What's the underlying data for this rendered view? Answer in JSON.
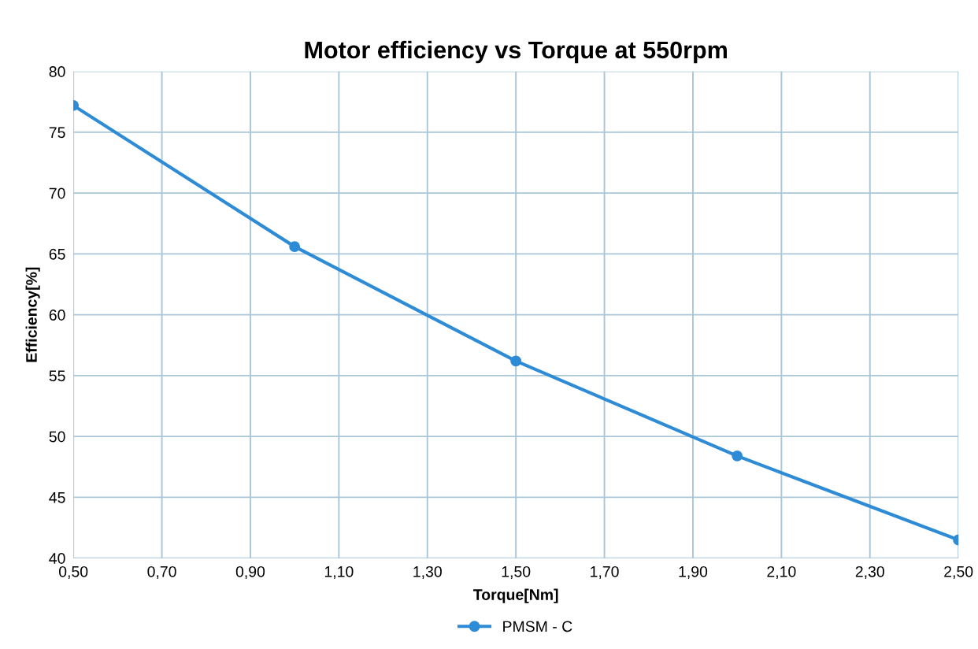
{
  "chart_data": {
    "type": "line",
    "title": "Motor efficiency vs Torque at 550rpm",
    "xlabel": "Torque[Nm]",
    "ylabel": "Efficiency[%]",
    "x": [
      0.5,
      1.0,
      1.5,
      2.0,
      2.5
    ],
    "series": [
      {
        "name": "PMSM - C",
        "color": "#2e8bd6",
        "values": [
          77.2,
          65.6,
          56.2,
          48.4,
          41.5
        ]
      }
    ],
    "xlim": [
      0.5,
      2.5
    ],
    "xticks": [
      {
        "value": 0.5,
        "label": "0,50"
      },
      {
        "value": 0.7,
        "label": "0,70"
      },
      {
        "value": 0.9,
        "label": "0,90"
      },
      {
        "value": 1.1,
        "label": "1,10"
      },
      {
        "value": 1.3,
        "label": "1,30"
      },
      {
        "value": 1.5,
        "label": "1,50"
      },
      {
        "value": 1.7,
        "label": "1,70"
      },
      {
        "value": 1.9,
        "label": "1,90"
      },
      {
        "value": 2.1,
        "label": "2,10"
      },
      {
        "value": 2.3,
        "label": "2,30"
      },
      {
        "value": 2.5,
        "label": "2,50"
      }
    ],
    "ylim": [
      40,
      80
    ],
    "yticks": [
      40,
      45,
      50,
      55,
      60,
      65,
      70,
      75,
      80
    ],
    "grid": true,
    "legend": "bottom",
    "marker": "circle",
    "line_style": "solid"
  }
}
